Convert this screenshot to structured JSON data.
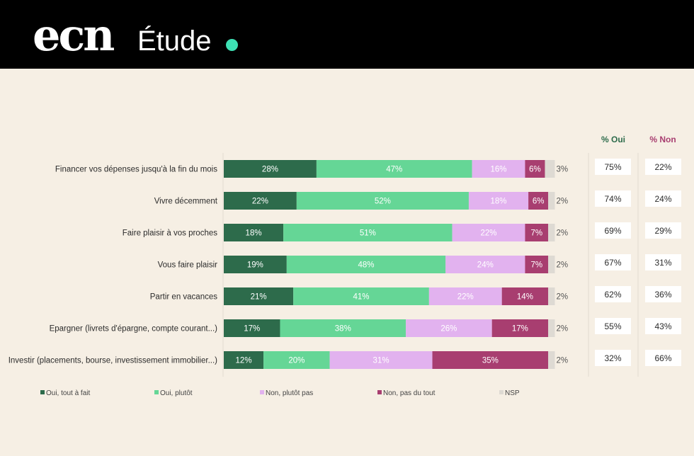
{
  "header": {
    "logo": "ecn",
    "subtitle": "Étude"
  },
  "colors": {
    "header_bg": "#000000",
    "page_bg": "#f6efe4",
    "accent_dot": "#3ee0b4",
    "oui_tout_a_fait": "#2d6b4b",
    "oui_plutot": "#65d696",
    "non_plutot_pas": "#e2b2ef",
    "non_pas_du_tout": "#a83e70",
    "nsp": "#dedad3",
    "oui_header": "#2d6b4b",
    "non_header": "#a83e70"
  },
  "chart_data": {
    "type": "bar",
    "orientation": "horizontal",
    "stacked": true,
    "categories": [
      "Financer vos dépenses jusqu'à la fin du mois",
      "Vivre décemment",
      "Faire plaisir à vos proches",
      "Vous faire plaisir",
      "Partir en vacances",
      "Epargner (livrets d'épargne, compte courant...)",
      "Investir (placements, bourse, investissement immobilier...)"
    ],
    "series": [
      {
        "name": "Oui, tout à fait",
        "values": [
          28,
          22,
          18,
          19,
          21,
          17,
          12
        ],
        "labels": [
          "28%",
          "22%",
          "18%",
          "19%",
          "21%",
          "17%",
          "12%"
        ]
      },
      {
        "name": "Oui, plutôt",
        "values": [
          47,
          52,
          51,
          48,
          41,
          38,
          20
        ],
        "labels": [
          "47%",
          "52%",
          "51%",
          "48%",
          "41%",
          "38%",
          "20%"
        ]
      },
      {
        "name": "Non, plutôt pas",
        "values": [
          16,
          18,
          22,
          24,
          22,
          26,
          31
        ],
        "labels": [
          "16%",
          "18%",
          "22%",
          "24%",
          "22%",
          "26%",
          "31%"
        ]
      },
      {
        "name": "Non, pas du tout",
        "values": [
          6,
          6,
          7,
          7,
          14,
          17,
          35
        ],
        "labels": [
          "6%",
          "6%",
          "7%",
          "7%",
          "14%",
          "17%",
          "35%"
        ]
      },
      {
        "name": "NSP",
        "values": [
          3,
          2,
          2,
          2,
          2,
          2,
          2
        ],
        "labels": [
          "3%",
          "2%",
          "2%",
          "2%",
          "2%",
          "2%",
          "2%"
        ]
      }
    ],
    "totals": {
      "oui_header": "% Oui",
      "non_header": "% Non",
      "oui": [
        "75%",
        "74%",
        "69%",
        "67%",
        "62%",
        "55%",
        "32%"
      ],
      "non": [
        "22%",
        "24%",
        "29%",
        "31%",
        "36%",
        "43%",
        "66%"
      ]
    },
    "xlim": [
      0,
      100
    ],
    "legend_position": "bottom",
    "grid": false
  }
}
